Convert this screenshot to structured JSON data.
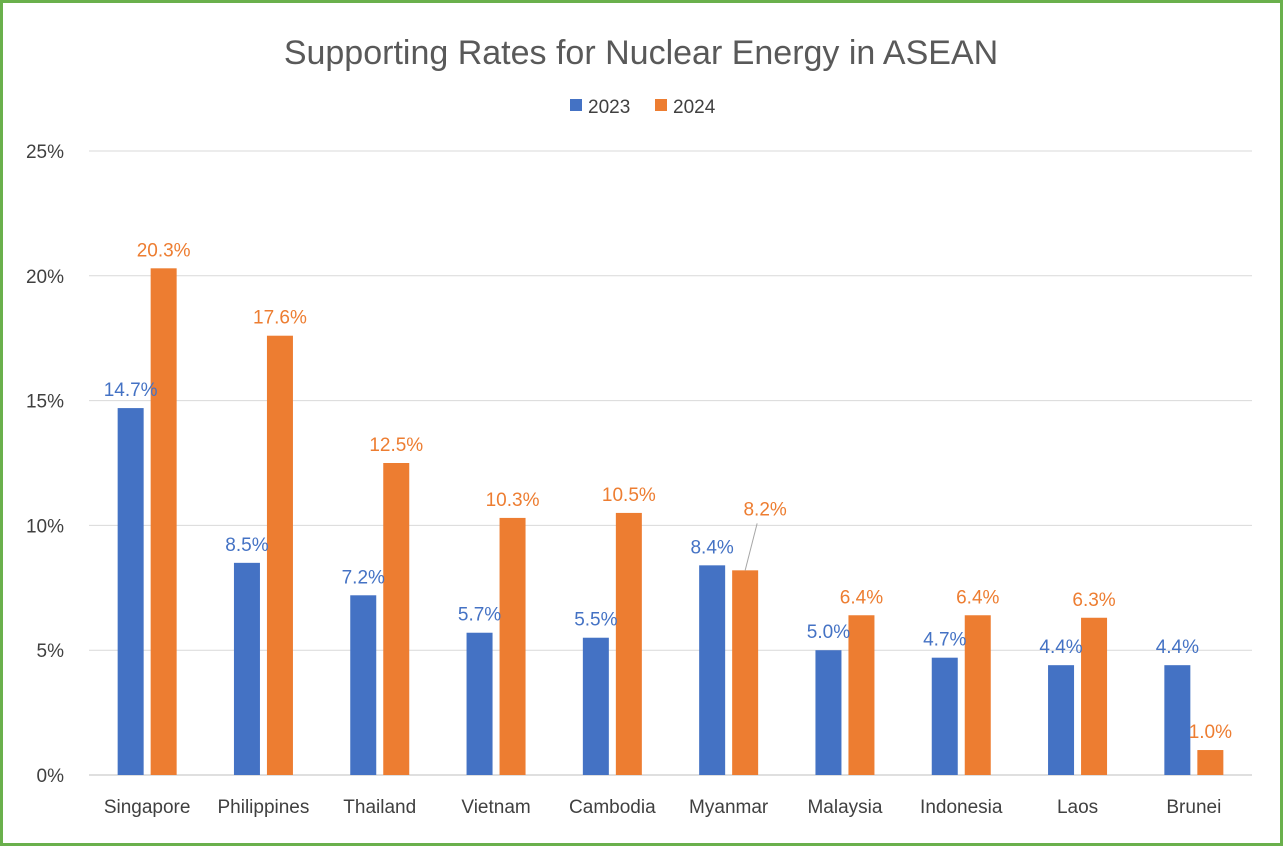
{
  "chart_data": {
    "type": "bar",
    "title": "Supporting Rates for Nuclear Energy in ASEAN",
    "categories": [
      "Singapore",
      "Philippines",
      "Thailand",
      "Vietnam",
      "Cambodia",
      "Myanmar",
      "Malaysia",
      "Indonesia",
      "Laos",
      "Brunei"
    ],
    "series": [
      {
        "name": "2023",
        "color": "#4472c4",
        "values": [
          14.7,
          8.5,
          7.2,
          5.7,
          5.5,
          8.4,
          5.0,
          4.7,
          4.4,
          4.4
        ],
        "labels": [
          "14.7%",
          "8.5%",
          "7.2%",
          "5.7%",
          "5.5%",
          "8.4%",
          "5.0%",
          "4.7%",
          "4.4%",
          "4.4%"
        ]
      },
      {
        "name": "2024",
        "color": "#ed7d31",
        "values": [
          20.3,
          17.6,
          12.5,
          10.3,
          10.5,
          8.2,
          6.4,
          6.4,
          6.3,
          1.0
        ],
        "labels": [
          "20.3%",
          "17.6%",
          "12.5%",
          "10.3%",
          "10.5%",
          "8.2%",
          "6.4%",
          "6.4%",
          "6.3%",
          "1.0%"
        ]
      }
    ],
    "ylim": [
      0,
      25
    ],
    "yticks": [
      "0%",
      "5%",
      "10%",
      "15%",
      "20%",
      "25%"
    ],
    "ytick_values": [
      0,
      5,
      10,
      15,
      20,
      25
    ],
    "grid": true,
    "legend_position": "top-center",
    "frame_color": "#6ab04c"
  }
}
